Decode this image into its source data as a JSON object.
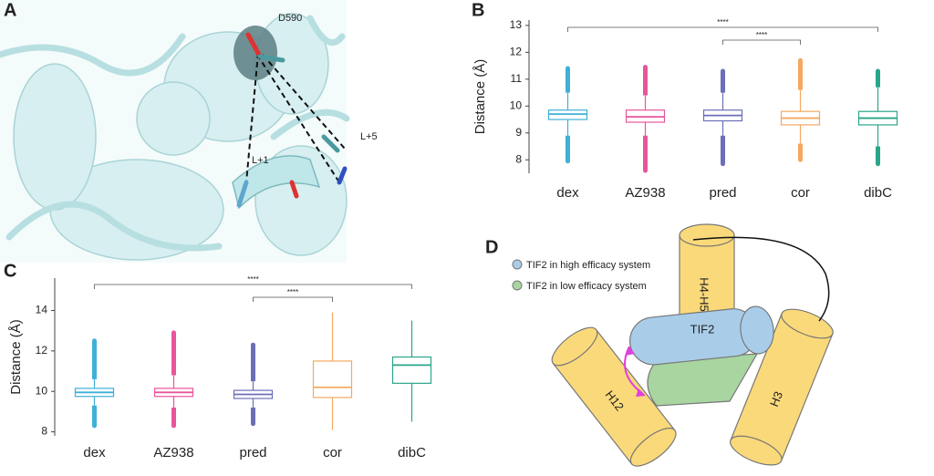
{
  "panel_labels": [
    "A",
    "B",
    "C",
    "D"
  ],
  "structure": {
    "labels": [
      "D590",
      "L+1",
      "L+5"
    ]
  },
  "diagram": {
    "legend": [
      "TIF2 in high efficacy system",
      "TIF2 in low efficacy system"
    ],
    "helices": [
      "H4-H5",
      "TIF2",
      "H12",
      "H3"
    ]
  },
  "chart_data": [
    {
      "type": "box",
      "y_label": "Distance (Å)",
      "categories": [
        "dex",
        "AZ938",
        "pred",
        "cor",
        "dibC"
      ],
      "boxes": [
        {
          "color": "#3fb0d8",
          "whislo": 8.9,
          "q1": 9.5,
          "median": 9.7,
          "q3": 9.85,
          "whishi": 10.5,
          "fliers": [
            7.95,
            11.4
          ]
        },
        {
          "color": "#e8559b",
          "whislo": 8.9,
          "q1": 9.4,
          "median": 9.6,
          "q3": 9.85,
          "whishi": 10.4,
          "fliers": [
            7.6,
            11.45
          ]
        },
        {
          "color": "#6b6fb8",
          "whislo": 8.9,
          "q1": 9.45,
          "median": 9.65,
          "q3": 9.85,
          "whishi": 10.5,
          "fliers": [
            7.85,
            11.3
          ]
        },
        {
          "color": "#f5a860",
          "whislo": 8.6,
          "q1": 9.3,
          "median": 9.55,
          "q3": 9.8,
          "whishi": 10.6,
          "fliers": [
            8.0,
            11.7
          ]
        },
        {
          "color": "#2aa58a",
          "whislo": 8.5,
          "q1": 9.3,
          "median": 9.55,
          "q3": 9.8,
          "whishi": 10.7,
          "fliers": [
            7.85,
            11.3
          ]
        }
      ],
      "ylim": [
        7.5,
        13.2
      ],
      "yticks": [
        8,
        9,
        10,
        11,
        12,
        13
      ],
      "brackets": [
        {
          "between": [
            "dex",
            "dibC"
          ],
          "label": "****"
        },
        {
          "between": [
            "pred",
            "cor"
          ],
          "label": "****"
        }
      ]
    },
    {
      "type": "box",
      "y_label": "Distance (Å)",
      "categories": [
        "dex",
        "AZ938",
        "pred",
        "cor",
        "dibC"
      ],
      "boxes": [
        {
          "color": "#3fb0d8",
          "whislo": 9.3,
          "q1": 9.75,
          "median": 9.95,
          "q3": 10.15,
          "whishi": 10.6,
          "fliers": [
            8.3,
            12.5
          ]
        },
        {
          "color": "#e8559b",
          "whislo": 9.2,
          "q1": 9.75,
          "median": 9.95,
          "q3": 10.15,
          "whishi": 10.8,
          "fliers": [
            8.3,
            12.9
          ]
        },
        {
          "color": "#6b6fb8",
          "whislo": 9.2,
          "q1": 9.65,
          "median": 9.85,
          "q3": 10.05,
          "whishi": 10.5,
          "fliers": [
            8.4,
            12.3
          ]
        },
        {
          "color": "#f5a860",
          "whislo": 8.1,
          "q1": 9.7,
          "median": 10.2,
          "q3": 11.5,
          "whishi": 13.9
        },
        {
          "color": "#2aa58a",
          "whislo": 8.5,
          "q1": 10.4,
          "median": 11.3,
          "q3": 11.7,
          "whishi": 13.5
        }
      ],
      "ylim": [
        7.8,
        15.6
      ],
      "yticks": [
        8,
        10,
        12,
        14
      ],
      "brackets": [
        {
          "between": [
            "dex",
            "dibC"
          ],
          "label": "****"
        },
        {
          "between": [
            "pred",
            "cor"
          ],
          "label": "****"
        }
      ]
    }
  ]
}
